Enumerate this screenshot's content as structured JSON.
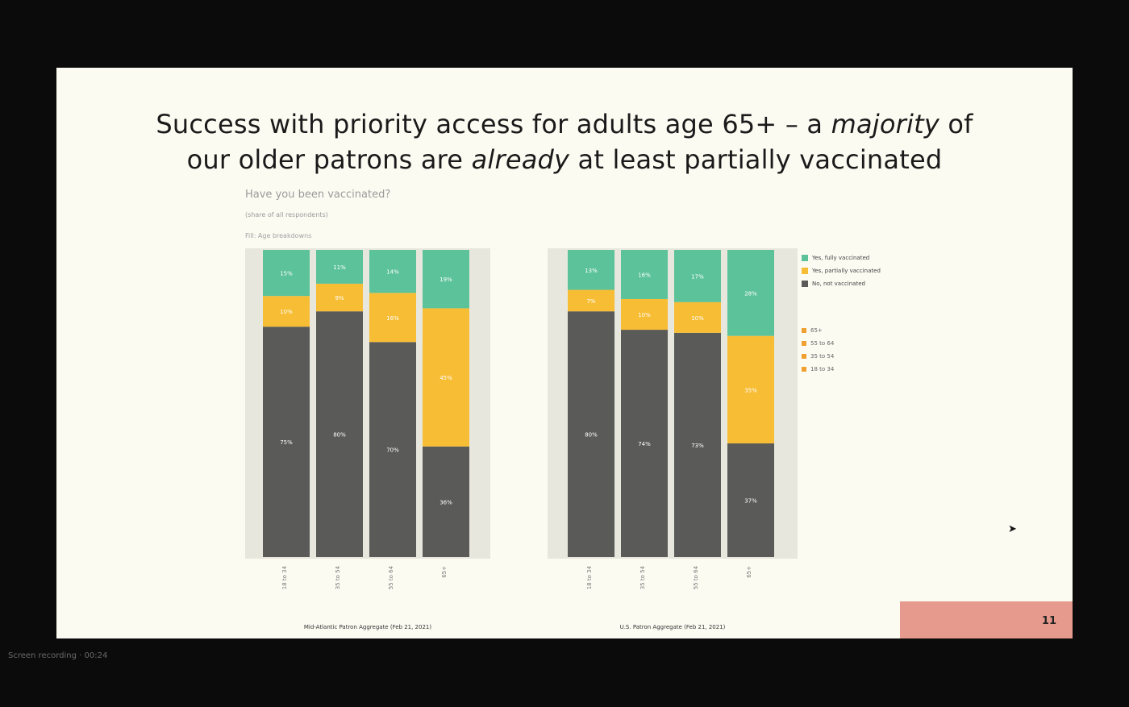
{
  "slide": {
    "title_part1": "Success with priority access for adults age 65+ – a ",
    "title_emph1": "majority",
    "title_part2": " of",
    "title_line2a": "our older patrons are ",
    "title_emph2": "already",
    "title_line2b": " at least partially vaccinated",
    "chart_title": "Have you been vaccinated?",
    "chart_subtitle": "(share of all respondents)",
    "chart_note": "Fill: Age breakdowns",
    "page_number": "11",
    "footer_text": "Screen recording · 00:24"
  },
  "colors": {
    "teal": "#5cc29a",
    "yellow": "#f7bd35",
    "gray": "#5a5a58",
    "panel": "#e8e7dd"
  },
  "legend": {
    "items": [
      {
        "label": "Yes, fully vaccinated",
        "color": "#5cc29a"
      },
      {
        "label": "Yes, partially vaccinated",
        "color": "#f7bd35"
      },
      {
        "label": "No, not vaccinated",
        "color": "#5a5a58"
      }
    ],
    "age_items": [
      {
        "label": "65+",
        "color": "#f0a030"
      },
      {
        "label": "55 to 64",
        "color": "#f0a030"
      },
      {
        "label": "35 to 54",
        "color": "#f0a030"
      },
      {
        "label": "18 to 34",
        "color": "#f0a030"
      }
    ]
  },
  "chart_data": {
    "type": "bar",
    "stacked": true,
    "normalized_percent": true,
    "ylim": [
      0,
      100
    ],
    "groups": [
      {
        "label": "Mid-Atlantic Patron Aggregate (Feb 21, 2021)",
        "categories": [
          "18 to 34",
          "35 to 54",
          "55 to 64",
          "65+"
        ],
        "series": [
          {
            "name": "No, not vaccinated",
            "values": [
              75,
              80,
              70,
              36
            ]
          },
          {
            "name": "Yes, partially vaccinated",
            "values": [
              10,
              9,
              16,
              45
            ]
          },
          {
            "name": "Yes, fully vaccinated",
            "values": [
              15,
              11,
              14,
              19
            ]
          }
        ],
        "data_labels": [
          [
            "75%",
            "10%",
            "15%"
          ],
          [
            "80%",
            "9%",
            "11%"
          ],
          [
            "70%",
            "16%",
            "14%"
          ],
          [
            "36%",
            "45%",
            "19%"
          ]
        ]
      },
      {
        "label": "U.S. Patron Aggregate (Feb 21, 2021)",
        "categories": [
          "18 to 34",
          "35 to 54",
          "55 to 64",
          "65+"
        ],
        "series": [
          {
            "name": "No, not vaccinated",
            "values": [
              80,
              74,
              73,
              37
            ]
          },
          {
            "name": "Yes, partially vaccinated",
            "values": [
              7,
              10,
              10,
              35
            ]
          },
          {
            "name": "Yes, fully vaccinated",
            "values": [
              13,
              16,
              17,
              28
            ]
          }
        ],
        "data_labels": [
          [
            "80%",
            "7%",
            "13%"
          ],
          [
            "74%",
            "10%",
            "16%"
          ],
          [
            "73%",
            "10%",
            "17%"
          ],
          [
            "37%",
            "35%",
            "28%"
          ]
        ]
      }
    ]
  }
}
